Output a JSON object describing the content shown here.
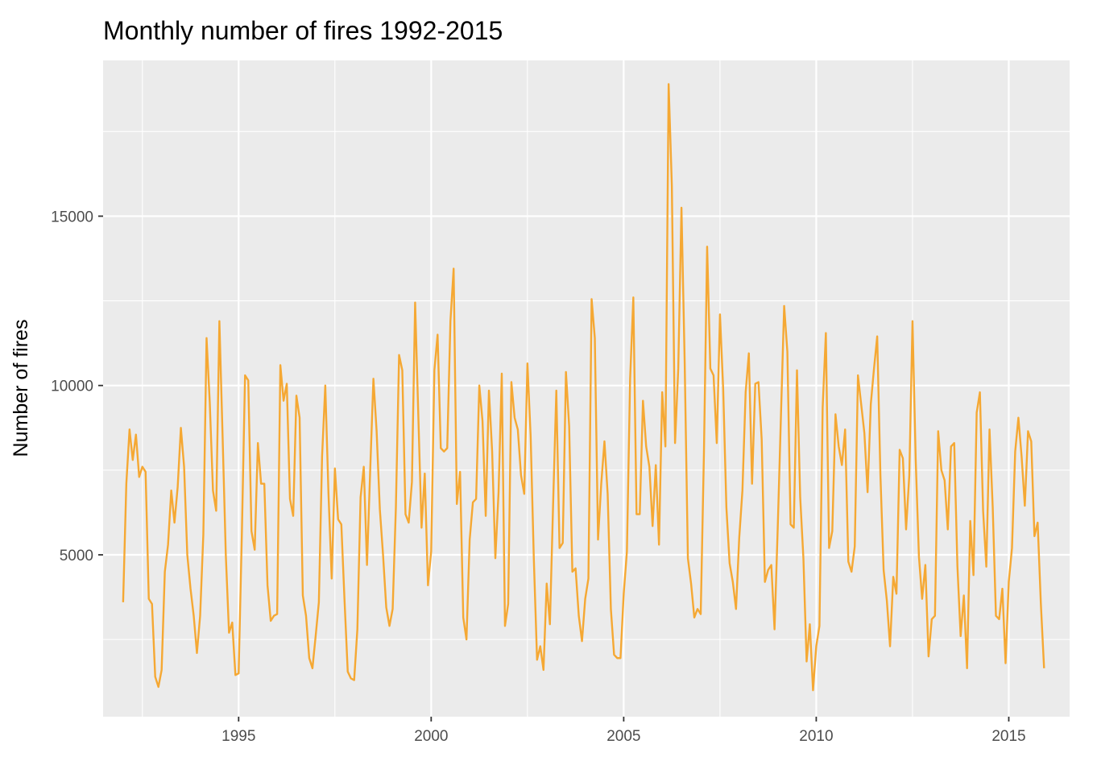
{
  "chart_data": {
    "type": "line",
    "title": "Monthly number of fires 1992-2015",
    "xlabel": "",
    "ylabel": "Number of fires",
    "xlim": [
      1991.48,
      2016.58
    ],
    "ylim": [
      220,
      19600
    ],
    "x_ticks": [
      1995,
      2000,
      2005,
      2010,
      2015
    ],
    "y_ticks": [
      5000,
      10000,
      15000
    ],
    "grid": true,
    "legend": "none",
    "colors": {
      "line": "#F5A833",
      "panel": "#EBEBEB",
      "grid": "#FFFFFF",
      "tick_text": "#4D4D4D"
    },
    "series": [
      {
        "start_year": 1992,
        "points_per_year": 12,
        "values": [
          3600,
          7100,
          8700,
          7800,
          8550,
          7300,
          7600,
          7450,
          3700,
          3550,
          1400,
          1100,
          1600,
          4500,
          5300,
          6900,
          5950,
          7000,
          8750,
          7600,
          5000,
          4000,
          3200,
          2100,
          3200,
          5600,
          11400,
          9500,
          6900,
          6300,
          11900,
          8500,
          5000,
          2700,
          3000,
          1450,
          1500,
          5600,
          10300,
          10150,
          5700,
          5150,
          8300,
          7100,
          7100,
          4100,
          3050,
          3200,
          3250,
          10600,
          9550,
          10050,
          6650,
          6150,
          9700,
          9050,
          3800,
          3200,
          1950,
          1650,
          2600,
          3600,
          7900,
          10000,
          6800,
          4300,
          7550,
          6050,
          5900,
          3650,
          1550,
          1350,
          1300,
          2800,
          6700,
          7600,
          4700,
          7500,
          10200,
          8650,
          6350,
          5000,
          3450,
          2900,
          3400,
          6400,
          10900,
          10450,
          6200,
          5950,
          7150,
          12450,
          9100,
          5800,
          7400,
          4100,
          5100,
          10450,
          11500,
          8150,
          8050,
          8150,
          11900,
          13450,
          6500,
          7450,
          3150,
          2500,
          5450,
          6550,
          6650,
          10000,
          8950,
          6150,
          9850,
          8050,
          4900,
          6850,
          10350,
          2900,
          3550,
          10100,
          9050,
          8700,
          7350,
          6800,
          10650,
          8500,
          4850,
          1900,
          2300,
          1600,
          4150,
          2950,
          6500,
          9850,
          5200,
          5350,
          10400,
          8800,
          4500,
          4600,
          3200,
          2450,
          3700,
          4300,
          12550,
          11400,
          5450,
          7100,
          8350,
          6800,
          3400,
          2050,
          1950,
          1950,
          3850,
          5100,
          10200,
          12600,
          6200,
          6200,
          9550,
          8200,
          7600,
          5850,
          7650,
          5300,
          9800,
          8200,
          18900,
          15900,
          8300,
          10500,
          15250,
          10700,
          4900,
          4150,
          3150,
          3400,
          3250,
          8000,
          14100,
          10500,
          10300,
          8300,
          12100,
          9900,
          6400,
          4750,
          4200,
          3400,
          5500,
          6900,
          9800,
          10950,
          7100,
          10050,
          10100,
          8400,
          4200,
          4550,
          4700,
          2800,
          5800,
          9100,
          12350,
          11000,
          5900,
          5800,
          10450,
          6700,
          4900,
          1850,
          2950,
          1000,
          2300,
          2900,
          9350,
          11550,
          5200,
          5700,
          9150,
          8200,
          7650,
          8700,
          4800,
          4500,
          5250,
          10300,
          9450,
          8600,
          6850,
          9450,
          10500,
          11450,
          7350,
          4550,
          3650,
          2300,
          4350,
          3850,
          8100,
          7850,
          5750,
          7350,
          11900,
          7800,
          4950,
          3700,
          4700,
          2000,
          3100,
          3200,
          8650,
          7500,
          7200,
          5750,
          8200,
          8300,
          4650,
          2600,
          3800,
          1650,
          6000,
          4400,
          9200,
          9800,
          6300,
          4650,
          8700,
          6400,
          3200,
          3100,
          4000,
          1800,
          4200,
          5200,
          8050,
          9050,
          7900,
          6450,
          8650,
          8350,
          5550,
          5950,
          3550,
          1650
        ]
      }
    ]
  }
}
